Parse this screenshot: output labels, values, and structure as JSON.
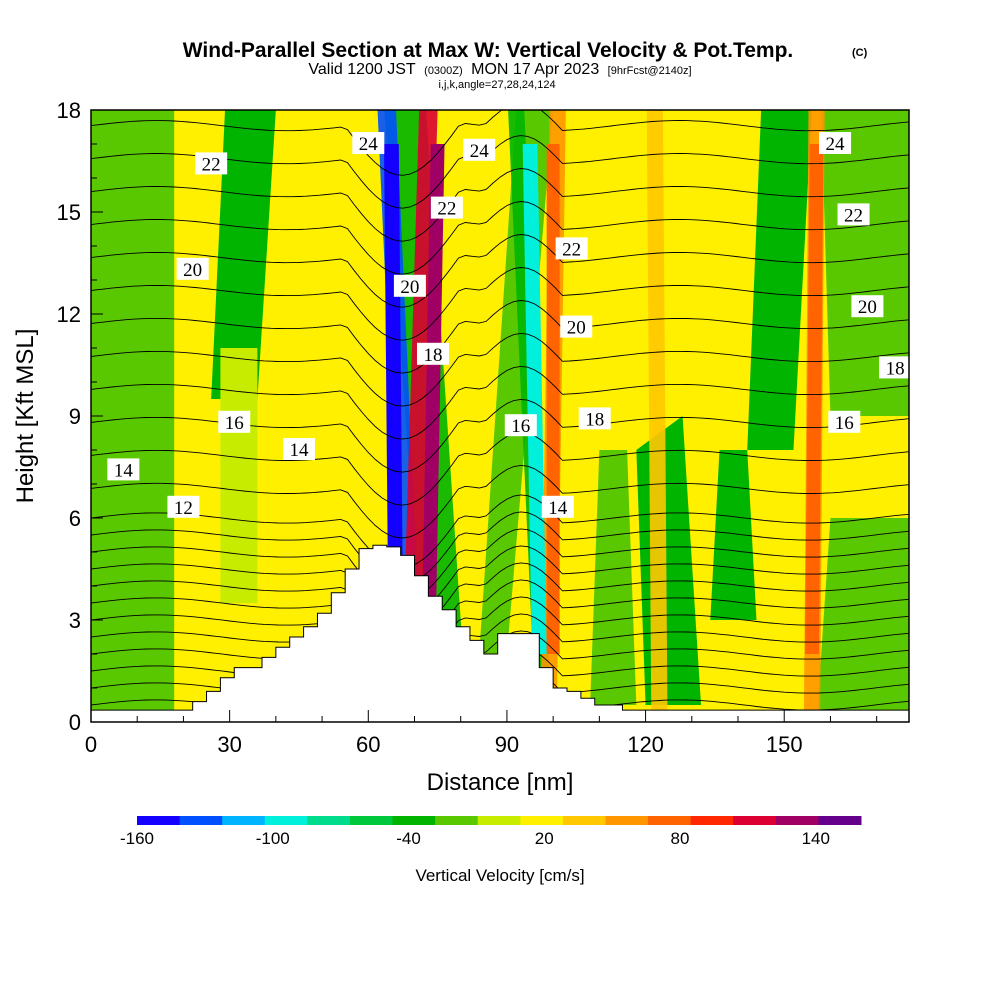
{
  "chart_data": {
    "type": "heatmap",
    "title": "Wind-Parallel Section at Max W: Vertical Velocity & Pot.Temp.",
    "title_mark": "(C)",
    "subtitle_parts": [
      "Valid 1200 JST",
      "(0300Z)",
      "MON 17 Apr 2023",
      "[9hrFcst@2140z]"
    ],
    "subtitle2": "i,j,k,angle=27,28,24,124",
    "xlabel": "Distance [nm]",
    "ylabel": "Height [Kft MSL]",
    "xlim": [
      0,
      177
    ],
    "ylim": [
      0,
      18
    ],
    "xticks": [
      0,
      30,
      60,
      90,
      120,
      150
    ],
    "yticks": [
      0,
      3,
      6,
      9,
      12,
      15,
      18
    ],
    "colorbar": {
      "label": "Vertical Velocity [cm/s]",
      "tick_labels": [
        "-160",
        "-100",
        "-40",
        "20",
        "80",
        "140"
      ],
      "tick_values": [
        -160,
        -100,
        -40,
        20,
        80,
        140
      ],
      "levels": [
        -160,
        -140,
        -120,
        -100,
        -80,
        -60,
        -40,
        -20,
        0,
        20,
        40,
        60,
        80,
        100,
        120,
        140,
        160
      ],
      "colors": [
        "#1400ff",
        "#0050ff",
        "#00b4ff",
        "#00f0dc",
        "#00dc8c",
        "#00c83c",
        "#00b400",
        "#5ac800",
        "#c8ec00",
        "#fff000",
        "#ffc800",
        "#ff9600",
        "#ff6400",
        "#ff2800",
        "#dc0032",
        "#a00064",
        "#64008c"
      ]
    },
    "terrain": {
      "x": [
        0,
        22,
        22,
        25,
        25,
        28,
        28,
        31,
        31,
        37,
        37,
        40,
        40,
        43,
        43,
        46,
        46,
        49,
        49,
        52,
        52,
        55,
        55,
        58,
        58,
        61,
        61,
        64,
        64,
        67,
        67,
        70,
        70,
        73,
        73,
        76,
        76,
        79,
        79,
        82,
        82,
        85,
        85,
        88,
        88,
        97,
        97,
        100,
        100,
        103,
        103,
        106,
        106,
        109,
        109,
        115,
        115,
        177
      ],
      "y": [
        0.35,
        0.35,
        0.6,
        0.6,
        0.9,
        0.9,
        1.3,
        1.3,
        1.6,
        1.6,
        1.9,
        1.9,
        2.2,
        2.2,
        2.5,
        2.5,
        2.8,
        2.8,
        3.2,
        3.2,
        3.8,
        3.8,
        4.5,
        4.5,
        5.1,
        5.1,
        5.2,
        5.2,
        5.15,
        5.15,
        4.9,
        4.9,
        4.3,
        4.3,
        3.7,
        3.7,
        3.3,
        3.3,
        2.8,
        2.8,
        2.4,
        2.4,
        2.0,
        2.0,
        2.6,
        2.6,
        1.6,
        1.6,
        1.0,
        1.0,
        0.9,
        0.9,
        0.7,
        0.7,
        0.5,
        0.5,
        0.35,
        0.35
      ]
    },
    "updraft_bands": [
      {
        "x_top": 68,
        "x_bottom": 77,
        "value": -40
      },
      {
        "x_top": 64,
        "x_bottom": 70,
        "value": -140
      },
      {
        "x_top": 73,
        "x_bottom": 69,
        "value": 120
      },
      {
        "x_top": 92,
        "x_bottom": 98,
        "value": -40
      },
      {
        "x_top": 101,
        "x_bottom": 99,
        "value": 60
      },
      {
        "x_top": 122,
        "x_bottom": 123,
        "value": 40
      },
      {
        "x_top": 157,
        "x_bottom": 156,
        "value": 60
      }
    ],
    "isentropes": [
      {
        "label": "12",
        "base": 5.9
      },
      {
        "label": "14",
        "base": 7.4
      },
      {
        "label": "16",
        "base": 8.7
      },
      {
        "label": "18",
        "base": 10.0
      },
      {
        "label": "20",
        "base": 13.0
      },
      {
        "label": "22",
        "base": 16.1
      },
      {
        "label": "24",
        "base": 17.4
      }
    ],
    "contour_labels": [
      {
        "text": "24",
        "x": 60,
        "y": 17.0
      },
      {
        "text": "24",
        "x": 84,
        "y": 16.8
      },
      {
        "text": "24",
        "x": 161,
        "y": 17.0
      },
      {
        "text": "22",
        "x": 26,
        "y": 16.4
      },
      {
        "text": "22",
        "x": 77,
        "y": 15.1
      },
      {
        "text": "22",
        "x": 104,
        "y": 13.9
      },
      {
        "text": "22",
        "x": 165,
        "y": 14.9
      },
      {
        "text": "20",
        "x": 22,
        "y": 13.3
      },
      {
        "text": "20",
        "x": 69,
        "y": 12.8
      },
      {
        "text": "20",
        "x": 105,
        "y": 11.6
      },
      {
        "text": "20",
        "x": 168,
        "y": 12.2
      },
      {
        "text": "18",
        "x": 74,
        "y": 10.8
      },
      {
        "text": "18",
        "x": 109,
        "y": 8.9
      },
      {
        "text": "18",
        "x": 174,
        "y": 10.4
      },
      {
        "text": "16",
        "x": 31,
        "y": 8.8
      },
      {
        "text": "16",
        "x": 93,
        "y": 8.7
      },
      {
        "text": "16",
        "x": 163,
        "y": 8.8
      },
      {
        "text": "14",
        "x": 7,
        "y": 7.4
      },
      {
        "text": "14",
        "x": 45,
        "y": 8.0
      },
      {
        "text": "14",
        "x": 101,
        "y": 6.3
      },
      {
        "text": "12",
        "x": 20,
        "y": 6.3
      }
    ]
  }
}
